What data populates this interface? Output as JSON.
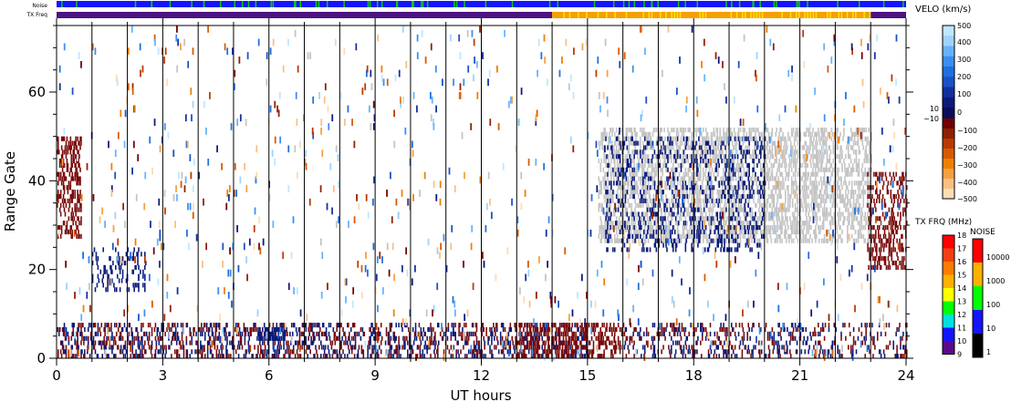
{
  "header": {
    "noise_label": "Noise",
    "txfreq_label": "TX Freq"
  },
  "chart_data": {
    "type": "heatmap",
    "xlabel": "UT hours",
    "ylabel": "Range Gate",
    "xlim": [
      0,
      24
    ],
    "ylim": [
      0,
      75
    ],
    "x_ticks": [
      0,
      3,
      6,
      9,
      12,
      15,
      18,
      21,
      24
    ],
    "y_ticks": [
      0,
      20,
      40,
      60
    ],
    "hour_lines": [
      1,
      2,
      3,
      4,
      5,
      6,
      7,
      8,
      9,
      10,
      11,
      12,
      13,
      14,
      15,
      16,
      17,
      18,
      19,
      20,
      21,
      22,
      23
    ],
    "colors": {
      "neg_dark": "#7a0a0a",
      "pos_dark": "#0a1a7a",
      "ground": "#c4c4c4"
    },
    "tx_freq_bar": [
      {
        "start": 0,
        "end": 14.0,
        "color": "#4b1480"
      },
      {
        "start": 14.0,
        "end": 23.0,
        "color": "#f5a000"
      },
      {
        "start": 23.0,
        "end": 24,
        "color": "#4b1480"
      }
    ],
    "scatter_regions": [
      {
        "name": "ground-scatter-main",
        "x": [
          15.3,
          23.0
        ],
        "gates": [
          26,
          52
        ],
        "color": "ground",
        "density": 0.75
      },
      {
        "name": "low-gate-mixed",
        "x": [
          0.0,
          15.0
        ],
        "gates": [
          0,
          8
        ],
        "color": "mixed",
        "density": 0.55
      },
      {
        "name": "low-gate-negative",
        "x": [
          13.0,
          16.0
        ],
        "gates": [
          0,
          8
        ],
        "color": "neg_dark",
        "density": 0.7
      },
      {
        "name": "low-gate-mixed-late",
        "x": [
          16.0,
          24.0
        ],
        "gates": [
          0,
          8
        ],
        "color": "mixed",
        "density": 0.35
      },
      {
        "name": "early-negative-patch",
        "x": [
          0.0,
          0.7
        ],
        "gates": [
          27,
          50
        ],
        "color": "neg_dark",
        "density": 0.7
      },
      {
        "name": "late-negative-patch",
        "x": [
          22.9,
          24.0
        ],
        "gates": [
          20,
          42
        ],
        "color": "neg_dark",
        "density": 0.55
      },
      {
        "name": "positive-band",
        "x": [
          15.5,
          20.0
        ],
        "gates": [
          24,
          50
        ],
        "color": "pos_dark",
        "density": 0.3
      },
      {
        "name": "positive-patch-6ut",
        "x": [
          5.7,
          6.5
        ],
        "gates": [
          4,
          7
        ],
        "color": "pos_dark",
        "density": 1.0
      },
      {
        "name": "positive-arc-2ut",
        "x": [
          1.0,
          2.5
        ],
        "gates": [
          15,
          25
        ],
        "color": "pos_dark",
        "density": 0.35
      }
    ],
    "velocity_colorbar": {
      "title": "VELO (km/s)",
      "labels": [
        "500",
        "400",
        "300",
        "200",
        "100",
        "0",
        "10",
        "−10",
        "−100",
        "−200",
        "−300",
        "−400",
        "−500"
      ],
      "positive_colors": [
        "#bfe6ff",
        "#9fd2ff",
        "#66b2ff",
        "#3a8ef0",
        "#1f6fe0",
        "#1a50c8",
        "#1230a0",
        "#0c1a7a"
      ],
      "negative_colors": [
        "#700000",
        "#902000",
        "#b83a00",
        "#d85a00",
        "#ef7f00",
        "#f6a040",
        "#f8c080",
        "#fbdcb4"
      ]
    },
    "txfreq_colorbar": {
      "title": "TX FRQ (MHz)",
      "labels": [
        "18",
        "17",
        "16",
        "15",
        "14",
        "13",
        "12",
        "11",
        "10",
        "9"
      ],
      "colors": [
        "#ff0000",
        "#f04010",
        "#ff7a00",
        "#ffb000",
        "#ffff00",
        "#00ff00",
        "#00e0e0",
        "#1414ff",
        "#5a0a8a",
        "#000000"
      ]
    },
    "noise_colorbar": {
      "title": "NOISE",
      "labels": [
        "10000",
        "1000",
        "100",
        "10",
        "1"
      ],
      "colors": [
        "#ff0000",
        "#ffb000",
        "#00ff00",
        "#1414ff",
        "#000000"
      ]
    }
  }
}
